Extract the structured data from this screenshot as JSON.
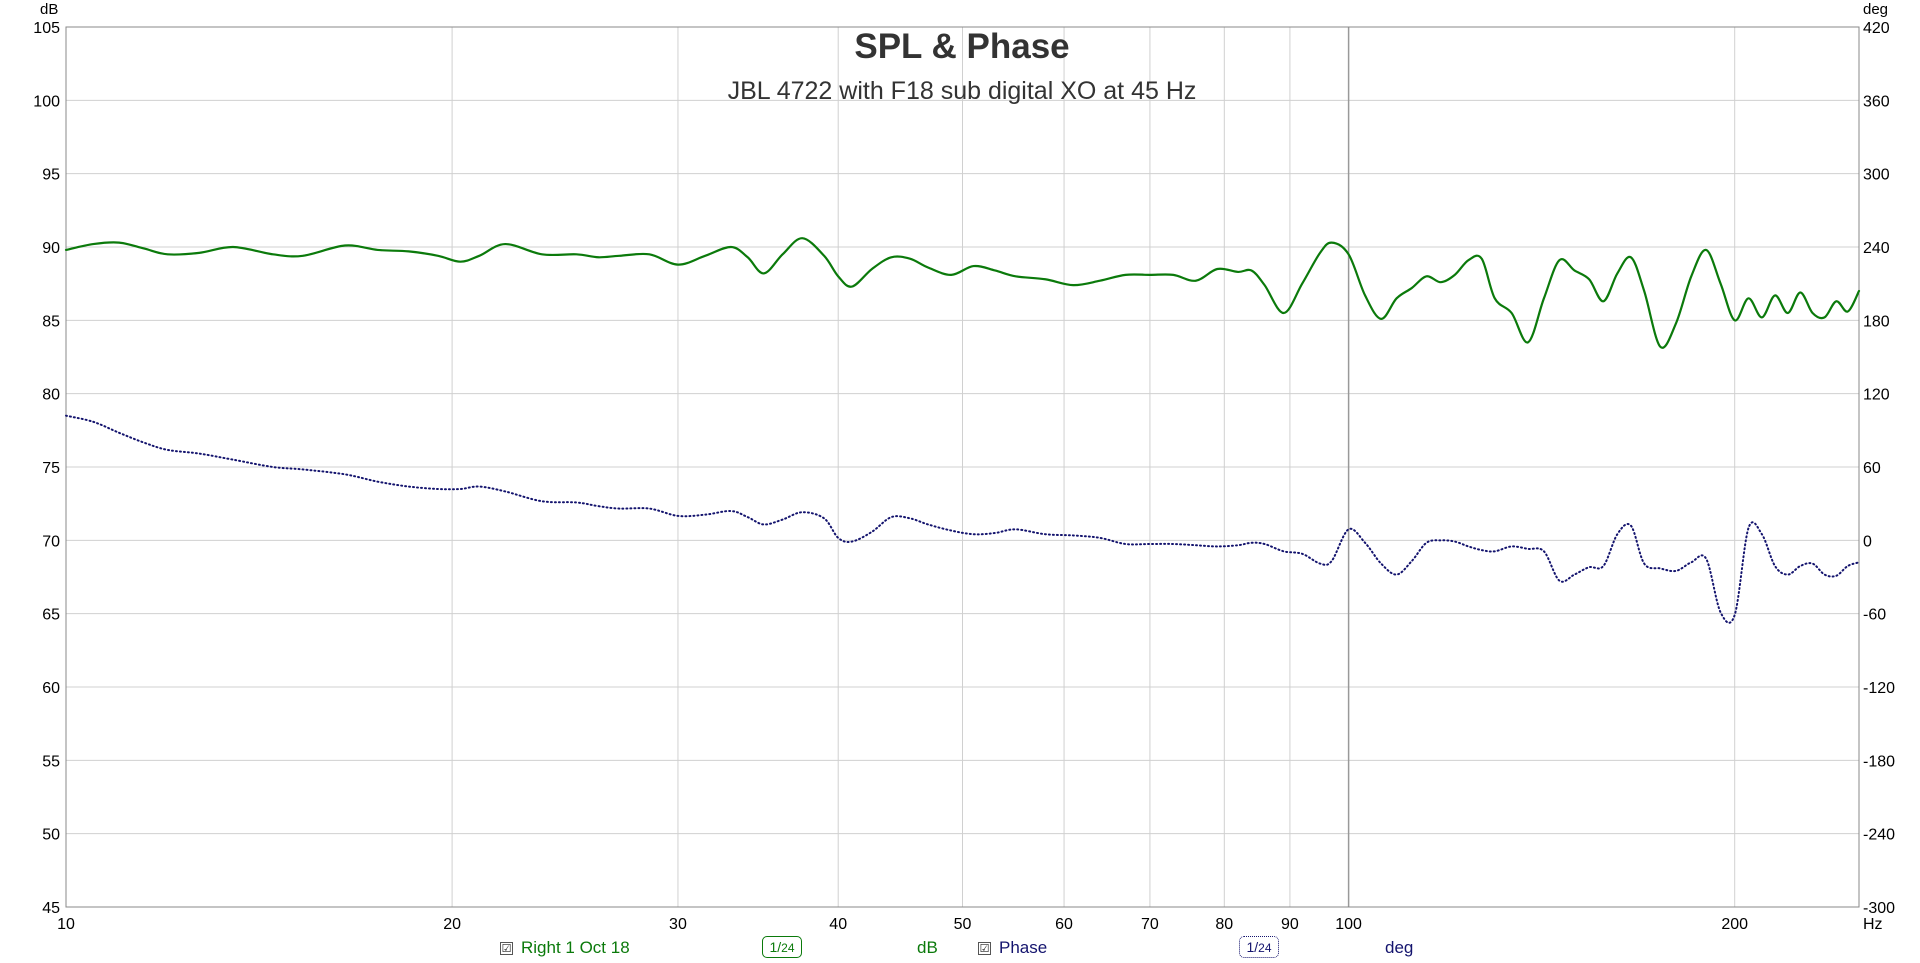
{
  "colors": {
    "spl": "#0b7a0b",
    "phase": "#14146e",
    "grid": "#d0d0d0",
    "axis_text": "#000000",
    "title": "#333333"
  },
  "chart_data": {
    "type": "line",
    "title": "SPL & Phase",
    "subtitle": "JBL 4722 with F18 sub digital XO at 45 Hz",
    "x_scale": "log",
    "xlim": [
      10,
      250
    ],
    "x_ticks": [
      10,
      20,
      30,
      40,
      50,
      60,
      70,
      80,
      90,
      100,
      200
    ],
    "x_unit": "Hz",
    "y_left": {
      "label": "dB",
      "lim": [
        45,
        105
      ],
      "ticks": [
        45,
        50,
        55,
        60,
        65,
        70,
        75,
        80,
        85,
        90,
        95,
        100,
        105
      ]
    },
    "y_right": {
      "label": "deg",
      "lim": [
        -300,
        420
      ],
      "ticks": [
        -300,
        -240,
        -180,
        -120,
        -60,
        0,
        60,
        120,
        180,
        240,
        300,
        360,
        420
      ]
    },
    "grid": true,
    "series": [
      {
        "name": "Right 1 Oct 18",
        "axis": "left",
        "style": "solid",
        "x": [
          10,
          10.5,
          11,
          11.5,
          12,
          12.7,
          13.5,
          14.5,
          15.3,
          16.5,
          17.5,
          18.5,
          19.5,
          20.3,
          21,
          22,
          23.5,
          25,
          26,
          27,
          28.5,
          30,
          31.5,
          33,
          34,
          35,
          36.2,
          37.5,
          39,
          40,
          41,
          42.5,
          44,
          45.5,
          47,
          49,
          51,
          53,
          55,
          58,
          61,
          64,
          67,
          70,
          73,
          76,
          79,
          82,
          84,
          86,
          89,
          92,
          95,
          97,
          100,
          103,
          106,
          109,
          112,
          115,
          118,
          121,
          124,
          127,
          130,
          134,
          138,
          142,
          146,
          150,
          154,
          158,
          162,
          166,
          170,
          175,
          180,
          185,
          190,
          195,
          200,
          205,
          210,
          215,
          220,
          225,
          230,
          235,
          240,
          245,
          250
        ],
        "values": [
          89.8,
          90.2,
          90.3,
          89.9,
          89.5,
          89.6,
          90.0,
          89.5,
          89.4,
          90.1,
          89.8,
          89.7,
          89.4,
          89.0,
          89.4,
          90.2,
          89.5,
          89.5,
          89.3,
          89.4,
          89.5,
          88.8,
          89.4,
          90.0,
          89.3,
          88.2,
          89.5,
          90.6,
          89.4,
          88.0,
          87.3,
          88.5,
          89.3,
          89.2,
          88.6,
          88.1,
          88.7,
          88.4,
          88.0,
          87.8,
          87.4,
          87.7,
          88.1,
          88.1,
          88.1,
          87.7,
          88.5,
          88.3,
          88.4,
          87.4,
          85.5,
          87.5,
          89.6,
          90.3,
          89.5,
          86.7,
          85.1,
          86.5,
          87.2,
          88.0,
          87.6,
          88.1,
          89.1,
          89.2,
          86.5,
          85.5,
          83.5,
          86.5,
          89.1,
          88.4,
          87.8,
          86.3,
          88.2,
          89.3,
          87.0,
          83.2,
          84.8,
          88.0,
          89.8,
          87.5,
          85.0,
          86.5,
          85.2,
          86.7,
          85.5,
          86.9,
          85.5,
          85.2,
          86.3,
          85.6,
          87.0
        ]
      },
      {
        "name": "Phase",
        "axis": "right",
        "style": "dotted",
        "x": [
          10,
          10.5,
          11,
          11.5,
          12,
          12.7,
          13.5,
          14.5,
          15.3,
          16.5,
          17.5,
          18.5,
          19.5,
          20.3,
          21,
          22,
          23.5,
          25,
          26,
          27,
          28.5,
          30,
          31.5,
          33,
          34,
          35,
          36.2,
          37.5,
          39,
          40,
          41,
          42.5,
          44,
          45.5,
          47,
          49,
          51,
          53,
          55,
          58,
          61,
          64,
          67,
          70,
          73,
          76,
          79,
          82,
          84,
          86,
          89,
          92,
          95,
          97,
          100,
          103,
          106,
          109,
          112,
          115,
          118,
          121,
          124,
          127,
          130,
          134,
          138,
          142,
          146,
          150,
          154,
          158,
          162,
          166,
          170,
          175,
          180,
          185,
          190,
          195,
          200,
          205,
          210,
          215,
          220,
          225,
          230,
          235,
          240,
          245,
          250
        ],
        "values": [
          102,
          97,
          88,
          80,
          74,
          71,
          66,
          60,
          58,
          54,
          48,
          44,
          42,
          42,
          44,
          40,
          32,
          31,
          28,
          26,
          26,
          20,
          21,
          24,
          19,
          13,
          17,
          23,
          18,
          2,
          -1,
          7,
          19,
          18,
          13,
          8,
          5,
          6,
          9,
          5,
          4,
          2,
          -3,
          -3,
          -3,
          -4,
          -5,
          -4,
          -2,
          -3,
          -9,
          -11,
          -19,
          -17,
          9,
          -2,
          -19,
          -28,
          -17,
          -2,
          0,
          -1,
          -5,
          -8,
          -9,
          -5,
          -7,
          -9,
          -33,
          -28,
          -22,
          -21,
          5,
          12,
          -19,
          -23,
          -25,
          -18,
          -15,
          -59,
          -61,
          10,
          5,
          -21,
          -28,
          -21,
          -19,
          -28,
          -29,
          -21,
          -18
        ]
      }
    ]
  },
  "legend": {
    "spl_checkbox": "☑",
    "spl_name": "Right 1 Oct 18",
    "spl_smoothing_num": "1",
    "spl_smoothing_den": "24",
    "spl_unit": "dB",
    "phase_checkbox": "☑",
    "phase_name": "Phase",
    "phase_smoothing_num": "1",
    "phase_smoothing_den": "24",
    "phase_unit": "deg"
  }
}
